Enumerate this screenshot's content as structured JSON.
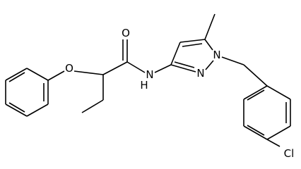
{
  "atoms": [
    {
      "label": "O"
    },
    {
      "label": "O"
    },
    {
      "label": "N"
    },
    {
      "label": "H"
    },
    {
      "label": "N"
    },
    {
      "label": "N"
    },
    {
      "label": "Cl"
    }
  ]
}
